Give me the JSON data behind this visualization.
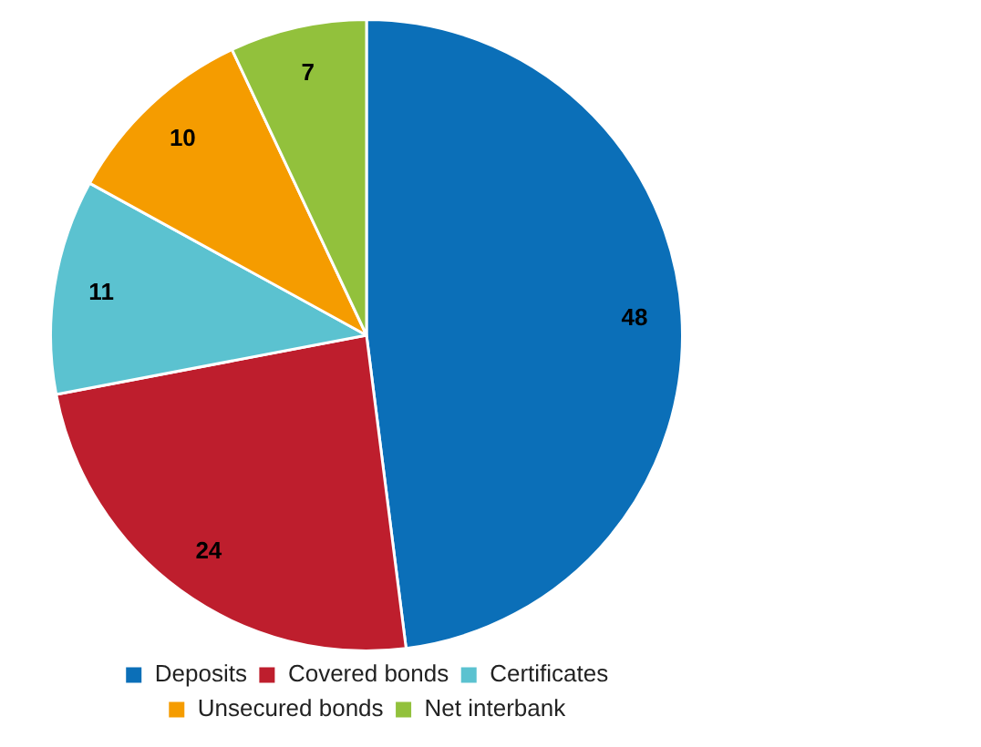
{
  "chart_data": {
    "type": "pie",
    "categories": [
      "Deposits",
      "Covered bonds",
      "Certificates",
      "Unsecured bonds",
      "Net interbank"
    ],
    "values": [
      48,
      24,
      11,
      10,
      7
    ],
    "colors": [
      "#0b6fb8",
      "#be1e2d",
      "#5bc2d0",
      "#f59c00",
      "#92c13c"
    ],
    "data_labels": true,
    "legend": "bottom"
  }
}
